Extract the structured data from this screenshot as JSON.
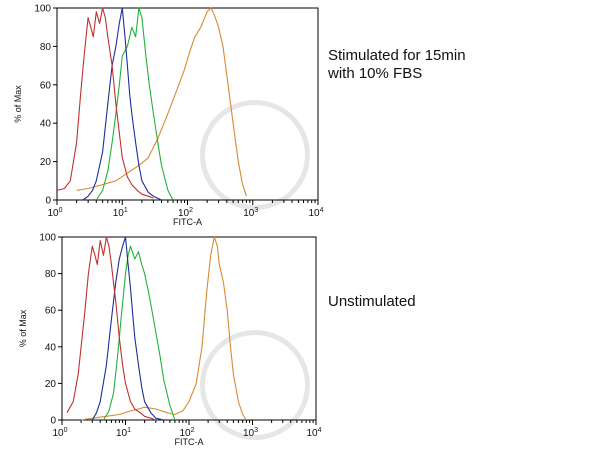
{
  "captions": {
    "top": [
      "Stimulated for 15min",
      "with 10% FBS"
    ],
    "bottom": "Unstimulated"
  },
  "colors": {
    "red": "#c0312e",
    "blue": "#1c2f9c",
    "green": "#22b23a",
    "orange": "#d98a32",
    "frame": "#000000"
  },
  "chart_data": [
    {
      "type": "line",
      "title": "Stimulated for 15min with 10% FBS",
      "xlabel": "FITC-A",
      "ylabel": "% of Max",
      "x_scale": "log10",
      "xlim": [
        1,
        10000
      ],
      "ylim": [
        0,
        100
      ],
      "yticks": [
        "0",
        "20",
        "40",
        "60",
        "80",
        "100"
      ],
      "xticks": [
        {
          "base": "10",
          "exp": "0"
        },
        {
          "base": "10",
          "exp": "1"
        },
        {
          "base": "10",
          "exp": "2"
        },
        {
          "base": "10",
          "exp": "3"
        },
        {
          "base": "10",
          "exp": "4"
        }
      ],
      "series": [
        {
          "name": "red",
          "color": "#c0312e",
          "x": [
            1.0,
            1.3,
            1.6,
            2.0,
            2.3,
            2.6,
            3.0,
            3.3,
            3.6,
            4.0,
            4.5,
            5.0,
            5.5,
            6.0,
            7.0,
            8.0,
            9.0,
            10,
            12,
            14,
            17,
            20,
            25,
            30
          ],
          "y": [
            5,
            6,
            10,
            30,
            55,
            75,
            95,
            90,
            85,
            98,
            92,
            100,
            95,
            85,
            70,
            50,
            35,
            22,
            12,
            8,
            5,
            3,
            2,
            1
          ]
        },
        {
          "name": "blue",
          "color": "#1c2f9c",
          "x": [
            2.5,
            3.0,
            3.5,
            4.0,
            5.0,
            6.0,
            7.0,
            8.0,
            9.0,
            10,
            11,
            12,
            13,
            14,
            16,
            18,
            20,
            25,
            30,
            40
          ],
          "y": [
            0,
            2,
            5,
            10,
            25,
            50,
            70,
            80,
            92,
            100,
            85,
            70,
            55,
            45,
            30,
            18,
            10,
            4,
            2,
            0
          ]
        },
        {
          "name": "green",
          "color": "#22b23a",
          "x": [
            4.0,
            5.0,
            6.0,
            7.0,
            8.0,
            9.0,
            10,
            12,
            14,
            16,
            18,
            20,
            23,
            26,
            30,
            35,
            40,
            50,
            60
          ],
          "y": [
            0,
            5,
            15,
            30,
            45,
            60,
            75,
            80,
            90,
            85,
            100,
            95,
            75,
            60,
            45,
            30,
            18,
            5,
            0
          ]
        },
        {
          "name": "orange",
          "color": "#d98a32",
          "x": [
            2.0,
            3.0,
            5.0,
            8.0,
            12,
            18,
            25,
            35,
            50,
            70,
            90,
            110,
            130,
            160,
            200,
            230,
            260,
            300,
            350,
            400,
            500,
            600,
            700,
            800
          ],
          "y": [
            5,
            6,
            8,
            10,
            14,
            18,
            22,
            32,
            45,
            58,
            68,
            78,
            85,
            90,
            98,
            100,
            96,
            90,
            80,
            65,
            40,
            20,
            8,
            2
          ]
        }
      ]
    },
    {
      "type": "line",
      "title": "Unstimulated",
      "xlabel": "FITC-A",
      "ylabel": "% of Max",
      "x_scale": "log10",
      "xlim": [
        1,
        10000
      ],
      "ylim": [
        0,
        100
      ],
      "yticks": [
        "0",
        "20",
        "40",
        "60",
        "80",
        "100"
      ],
      "xticks": [
        {
          "base": "10",
          "exp": "0"
        },
        {
          "base": "10",
          "exp": "1"
        },
        {
          "base": "10",
          "exp": "2"
        },
        {
          "base": "10",
          "exp": "3"
        },
        {
          "base": "10",
          "exp": "4"
        }
      ],
      "series": [
        {
          "name": "red",
          "color": "#c0312e",
          "x": [
            1.2,
            1.5,
            1.8,
            2.0,
            2.3,
            2.6,
            3.0,
            3.3,
            3.6,
            4.0,
            4.5,
            5.0,
            5.5,
            6.0,
            7.0,
            8.0,
            9.0,
            10,
            12,
            14,
            17,
            20,
            25,
            30
          ],
          "y": [
            4,
            10,
            25,
            40,
            60,
            80,
            95,
            90,
            85,
            98,
            90,
            100,
            95,
            85,
            65,
            45,
            30,
            20,
            10,
            6,
            4,
            2,
            1,
            0
          ]
        },
        {
          "name": "blue",
          "color": "#1c2f9c",
          "x": [
            3.0,
            3.5,
            4.0,
            5.0,
            6.0,
            7.0,
            8.0,
            9.0,
            10,
            11,
            12,
            13,
            14,
            16,
            18,
            20,
            25,
            30,
            40
          ],
          "y": [
            0,
            4,
            10,
            30,
            55,
            75,
            88,
            95,
            100,
            85,
            72,
            58,
            45,
            30,
            18,
            10,
            4,
            1,
            0
          ]
        },
        {
          "name": "green",
          "color": "#22b23a",
          "x": [
            4.5,
            5.5,
            6.5,
            7.5,
            8.5,
            10,
            11,
            12,
            14,
            16,
            18,
            20,
            23,
            26,
            30,
            35,
            40,
            50,
            60
          ],
          "y": [
            0,
            5,
            15,
            35,
            55,
            80,
            90,
            95,
            88,
            92,
            85,
            80,
            70,
            60,
            48,
            35,
            22,
            8,
            0
          ]
        },
        {
          "name": "orange",
          "color": "#d98a32",
          "x": [
            2.0,
            3.0,
            5.0,
            8.0,
            12,
            16,
            20,
            30,
            45,
            60,
            80,
            100,
            130,
            160,
            190,
            220,
            250,
            280,
            300,
            350,
            400,
            450,
            500,
            600,
            700,
            800
          ],
          "y": [
            0,
            1,
            2,
            3,
            5,
            6,
            7,
            6,
            4,
            3,
            5,
            10,
            20,
            40,
            70,
            90,
            100,
            95,
            85,
            75,
            60,
            40,
            25,
            10,
            3,
            0
          ]
        }
      ]
    }
  ]
}
